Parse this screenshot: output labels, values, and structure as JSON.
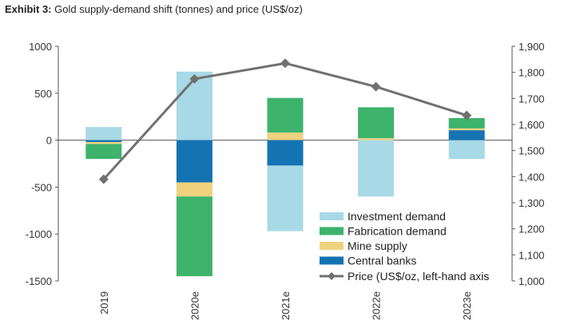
{
  "header": {
    "exhibit_label": "Exhibit 3:",
    "exhibit_text": "Gold supply-demand shift (tonnes) and price (US$/oz)"
  },
  "chart_data": {
    "type": "bar",
    "stacked": true,
    "title": "Gold supply-demand shift (tonnes) and price (US$/oz)",
    "categories": [
      "2019",
      "2020e",
      "2021e",
      "2022e",
      "2023e"
    ],
    "left_axis": {
      "ylim": [
        -1500,
        1000
      ],
      "ticks": [
        1000,
        500,
        0,
        -500,
        -1000,
        -1500
      ],
      "tick_labels": [
        "1000",
        "500",
        "0",
        "-500",
        "-1000",
        "-1500"
      ]
    },
    "right_axis": {
      "ylim": [
        1000,
        1900
      ],
      "ticks": [
        1900,
        1800,
        1700,
        1600,
        1500,
        1400,
        1300,
        1200,
        1100,
        1000
      ],
      "tick_labels": [
        "1,900",
        "1,800",
        "1,700",
        "1,600",
        "1,500",
        "1,400",
        "1,300",
        "1,200",
        "1,100",
        "1,000"
      ]
    },
    "series": [
      {
        "name": "Investment demand",
        "color": "#a8d9e6",
        "segments": [
          [
            0,
            140
          ],
          [
            0,
            730
          ],
          [
            -270,
            -970
          ],
          [
            20,
            -600
          ],
          [
            0,
            -200
          ]
        ]
      },
      {
        "name": "Fabrication demand",
        "color": "#3db36b",
        "segments": [
          [
            -40,
            -200
          ],
          [
            -600,
            -1450
          ],
          [
            80,
            450
          ],
          [
            20,
            350
          ],
          [
            125,
            235
          ]
        ]
      },
      {
        "name": "Mine supply",
        "color": "#f0d27e",
        "segments": [
          [
            -20,
            -40
          ],
          [
            -450,
            -600
          ],
          [
            0,
            80
          ],
          [
            0,
            20
          ],
          [
            105,
            125
          ]
        ]
      },
      {
        "name": "Central banks",
        "color": "#1473b3",
        "segments": [
          [
            0,
            -20
          ],
          [
            0,
            -450
          ],
          [
            0,
            -270
          ],
          null,
          [
            0,
            105
          ]
        ]
      }
    ],
    "line_series": {
      "name": "Price (US$/oz, left-hand axis",
      "color": "#707070",
      "values": [
        1390,
        1775,
        1835,
        1745,
        1635
      ]
    },
    "grid": false,
    "legend_position": "bottom-right"
  }
}
